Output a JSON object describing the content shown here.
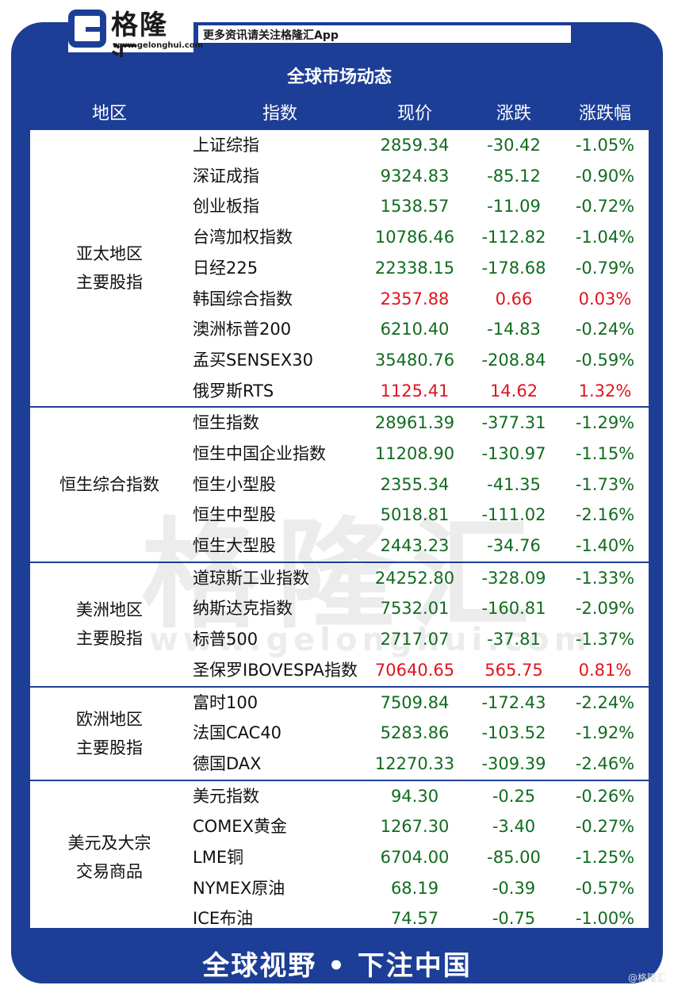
{
  "brand": {
    "name": "格隆汇",
    "url": "www.gelonghui.com",
    "slogan": "更多资讯请关注格隆汇App"
  },
  "table": {
    "title": "全球市场动态",
    "columns": [
      "地区",
      "指数",
      "现价",
      "涨跌",
      "涨跌幅"
    ],
    "groups": [
      {
        "region": [
          "亚太地区",
          "主要股指"
        ],
        "rows": [
          {
            "name": "上证综指",
            "price": "2859.34",
            "change": "-30.42",
            "pct": "-1.05%",
            "dir": "down"
          },
          {
            "name": "深证成指",
            "price": "9324.83",
            "change": "-85.12",
            "pct": "-0.90%",
            "dir": "down"
          },
          {
            "name": "创业板指",
            "price": "1538.57",
            "change": "-11.09",
            "pct": "-0.72%",
            "dir": "down"
          },
          {
            "name": "台湾加权指数",
            "price": "10786.46",
            "change": "-112.82",
            "pct": "-1.04%",
            "dir": "down"
          },
          {
            "name": "日经225",
            "price": "22338.15",
            "change": "-178.68",
            "pct": "-0.79%",
            "dir": "down"
          },
          {
            "name": "韩国综合指数",
            "price": "2357.88",
            "change": "0.66",
            "pct": "0.03%",
            "dir": "up"
          },
          {
            "name": "澳洲标普200",
            "price": "6210.40",
            "change": "-14.83",
            "pct": "-0.24%",
            "dir": "down"
          },
          {
            "name": "孟买SENSEX30",
            "price": "35480.76",
            "change": "-208.84",
            "pct": "-0.59%",
            "dir": "down"
          },
          {
            "name": "俄罗斯RTS",
            "price": "1125.41",
            "change": "14.62",
            "pct": "1.32%",
            "dir": "up"
          }
        ]
      },
      {
        "region": [
          "恒生综合指数"
        ],
        "rows": [
          {
            "name": "恒生指数",
            "price": "28961.39",
            "change": "-377.31",
            "pct": "-1.29%",
            "dir": "down"
          },
          {
            "name": "恒生中国企业指数",
            "price": "11208.90",
            "change": "-130.97",
            "pct": "-1.15%",
            "dir": "down"
          },
          {
            "name": "恒生小型股",
            "price": "2355.34",
            "change": "-41.35",
            "pct": "-1.73%",
            "dir": "down"
          },
          {
            "name": "恒生中型股",
            "price": "5018.81",
            "change": "-111.02",
            "pct": "-2.16%",
            "dir": "down"
          },
          {
            "name": "恒生大型股",
            "price": "2443.23",
            "change": "-34.76",
            "pct": "-1.40%",
            "dir": "down"
          }
        ]
      },
      {
        "region": [
          "美洲地区",
          "主要股指"
        ],
        "rows": [
          {
            "name": "道琼斯工业指数",
            "price": "24252.80",
            "change": "-328.09",
            "pct": "-1.33%",
            "dir": "down"
          },
          {
            "name": "纳斯达克指数",
            "price": "7532.01",
            "change": "-160.81",
            "pct": "-2.09%",
            "dir": "down"
          },
          {
            "name": "标普500",
            "price": "2717.07",
            "change": "-37.81",
            "pct": "-1.37%",
            "dir": "down"
          },
          {
            "name": "圣保罗IBOVESPA指数",
            "price": "70640.65",
            "change": "565.75",
            "pct": "0.81%",
            "dir": "up"
          }
        ]
      },
      {
        "region": [
          "欧洲地区",
          "主要股指"
        ],
        "rows": [
          {
            "name": "富时100",
            "price": "7509.84",
            "change": "-172.43",
            "pct": "-2.24%",
            "dir": "down"
          },
          {
            "name": "法国CAC40",
            "price": "5283.86",
            "change": "-103.52",
            "pct": "-1.92%",
            "dir": "down"
          },
          {
            "name": "德国DAX",
            "price": "12270.33",
            "change": "-309.39",
            "pct": "-2.46%",
            "dir": "down"
          }
        ]
      },
      {
        "region": [
          "美元及大宗",
          "交易商品"
        ],
        "rows": [
          {
            "name": "美元指数",
            "price": "94.30",
            "change": "-0.25",
            "pct": "-0.26%",
            "dir": "down"
          },
          {
            "name": "COMEX黄金",
            "price": "1267.30",
            "change": "-3.40",
            "pct": "-0.27%",
            "dir": "down"
          },
          {
            "name": "LME铜",
            "price": "6704.00",
            "change": "-85.00",
            "pct": "-1.25%",
            "dir": "down"
          },
          {
            "name": "NYMEX原油",
            "price": "68.19",
            "change": "-0.39",
            "pct": "-0.57%",
            "dir": "down"
          },
          {
            "name": "ICE布油",
            "price": "74.57",
            "change": "-0.75",
            "pct": "-1.00%",
            "dir": "down"
          }
        ]
      }
    ]
  },
  "footer": {
    "text": "全球视野 • 下注中国",
    "credit": "@格隆汇"
  },
  "colors": {
    "frame": "#1d3e96",
    "up": "#e0141e",
    "down": "#116b1f"
  }
}
